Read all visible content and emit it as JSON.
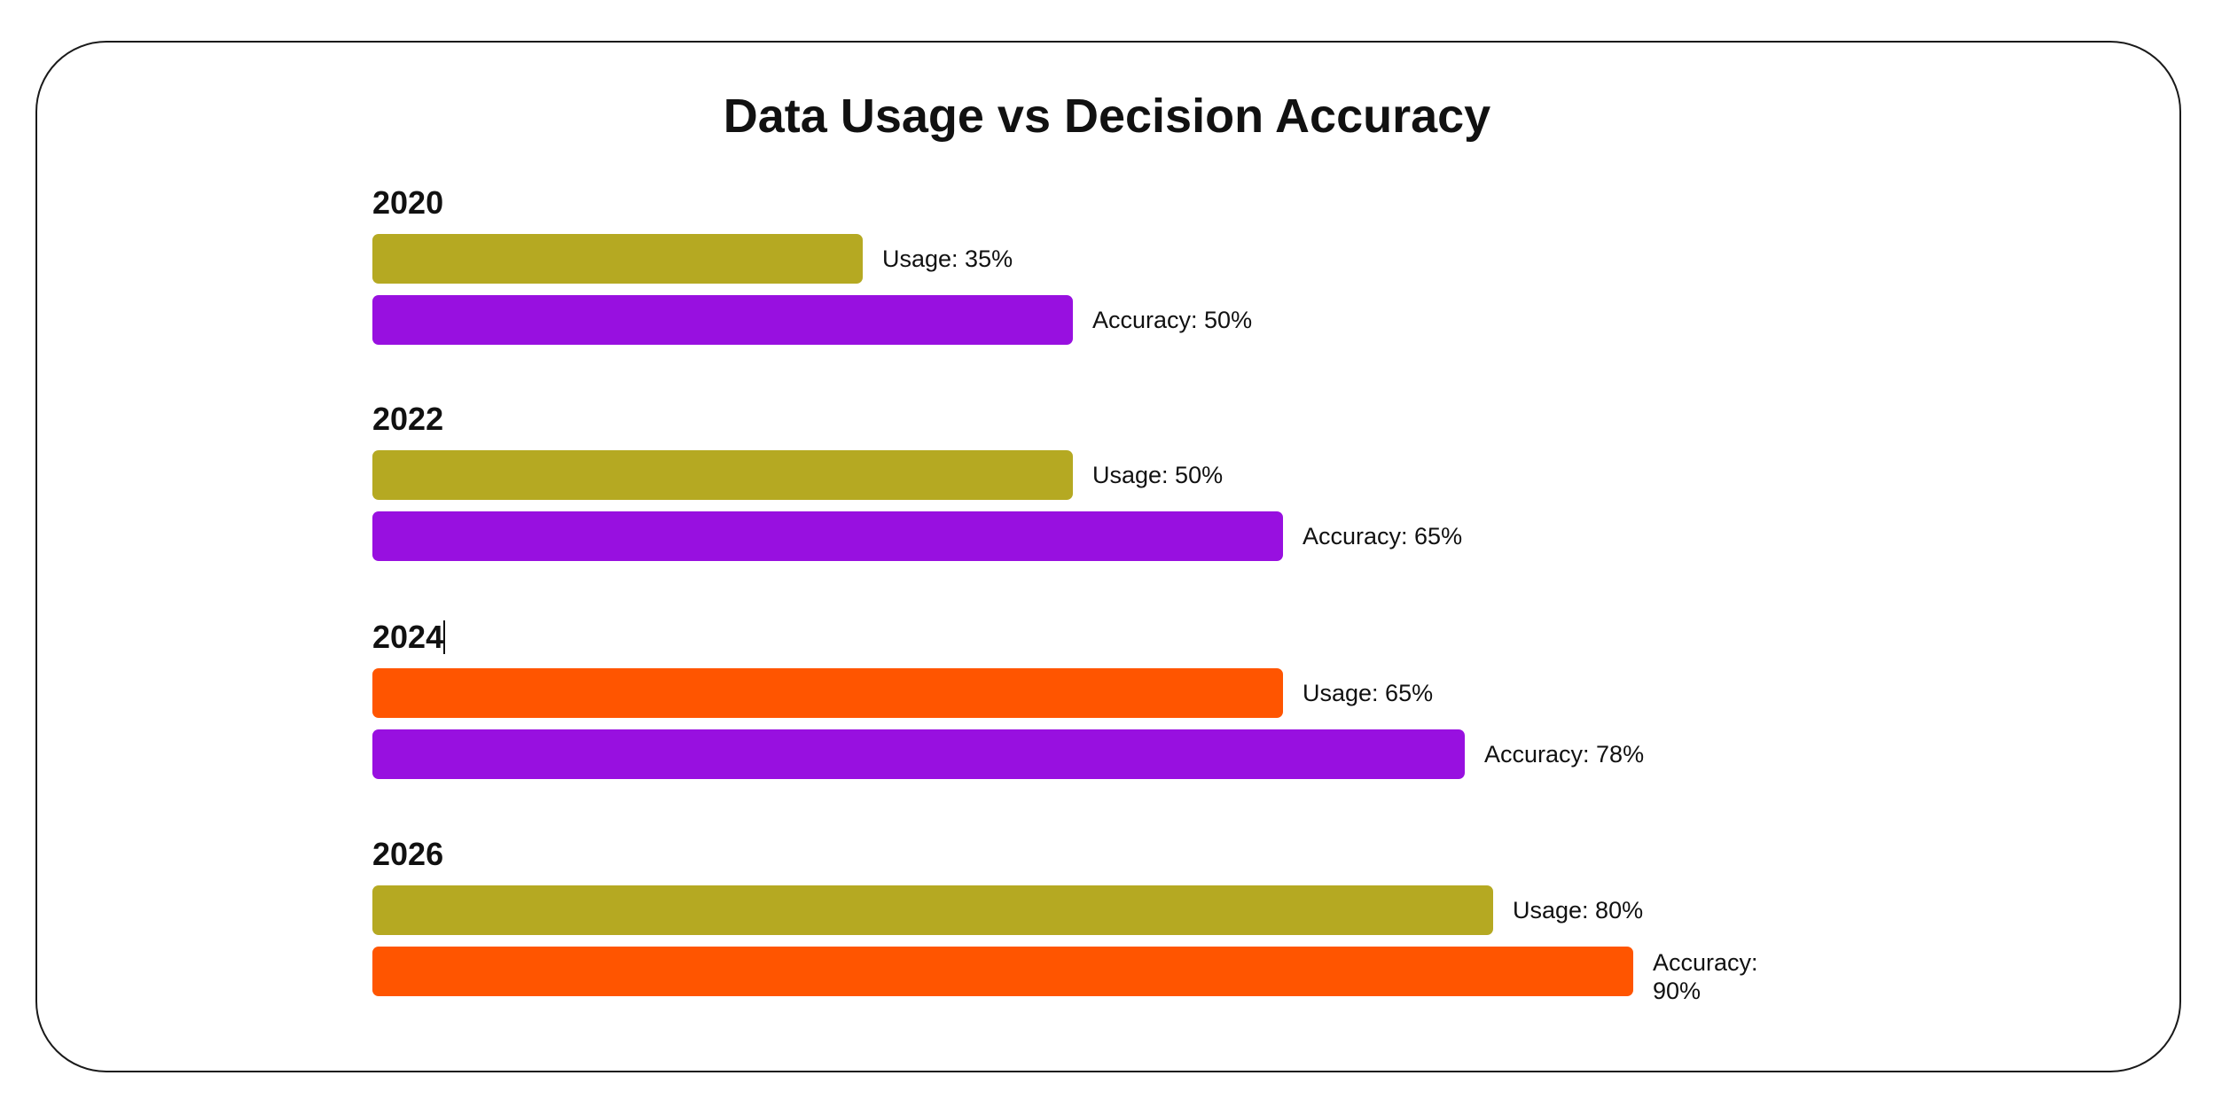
{
  "chart_data": {
    "type": "bar",
    "orientation": "horizontal",
    "title": "Data Usage vs Decision Accuracy",
    "xlim": [
      0,
      100
    ],
    "categories": [
      "2020",
      "2022",
      "2024",
      "2026"
    ],
    "series": [
      {
        "name": "Usage",
        "values": [
          35,
          50,
          65,
          80
        ],
        "labels": [
          "Usage: 35%",
          "Usage: 50%",
          "Usage: 65%",
          "Usage: 80%"
        ],
        "colors": [
          "#b5a922",
          "#b5a922",
          "#ff5500",
          "#b5a922"
        ]
      },
      {
        "name": "Accuracy",
        "values": [
          50,
          65,
          78,
          90
        ],
        "labels": [
          "Accuracy: 50%",
          "Accuracy: 65%",
          "Accuracy: 78%",
          "Accuracy: 90%"
        ],
        "colors": [
          "#9810e0",
          "#9810e0",
          "#9810e0",
          "#ff5500"
        ]
      }
    ],
    "grid": false,
    "legend": "none"
  }
}
